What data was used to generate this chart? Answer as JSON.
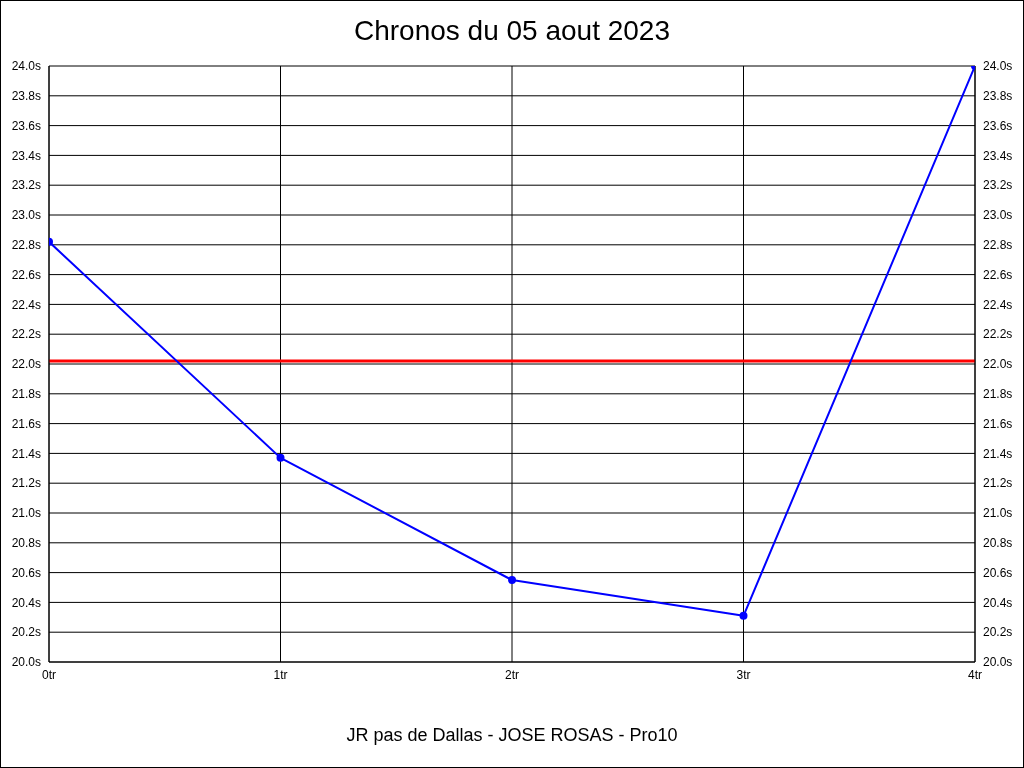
{
  "chart_data": {
    "type": "line",
    "title": "Chronos du 05 aout 2023",
    "xlabel": "JR pas de Dallas - JOSE ROSAS - Pro10",
    "categories": [
      "0tr",
      "1tr",
      "2tr",
      "3tr",
      "4tr"
    ],
    "series": [
      {
        "color": "#0000ff",
        "values": [
          22.82,
          21.37,
          20.55,
          20.31,
          24.0
        ]
      }
    ],
    "ylim": [
      20.0,
      24.0
    ],
    "yticks": [
      {
        "value": 20.0,
        "label": "20.0s"
      },
      {
        "value": 20.2,
        "label": "20.2s"
      },
      {
        "value": 20.4,
        "label": "20.4s"
      },
      {
        "value": 20.6,
        "label": "20.6s"
      },
      {
        "value": 20.8,
        "label": "20.8s"
      },
      {
        "value": 21.0,
        "label": "21.0s"
      },
      {
        "value": 21.2,
        "label": "21.2s"
      },
      {
        "value": 21.4,
        "label": "21.4s"
      },
      {
        "value": 21.6,
        "label": "21.6s"
      },
      {
        "value": 21.8,
        "label": "21.8s"
      },
      {
        "value": 22.0,
        "label": "22.0s"
      },
      {
        "value": 22.2,
        "label": "22.2s"
      },
      {
        "value": 22.4,
        "label": "22.4s"
      },
      {
        "value": 22.6,
        "label": "22.6s"
      },
      {
        "value": 22.8,
        "label": "22.8s"
      },
      {
        "value": 23.0,
        "label": "23.0s"
      },
      {
        "value": 23.2,
        "label": "23.2s"
      },
      {
        "value": 23.4,
        "label": "23.4s"
      },
      {
        "value": 23.6,
        "label": "23.6s"
      },
      {
        "value": 23.8,
        "label": "23.8s"
      },
      {
        "value": 24.0,
        "label": "24.0s"
      }
    ],
    "y2lim": [
      20.0,
      24.0
    ],
    "y2ticks": [
      {
        "value": 20.0,
        "label": "20.0s"
      },
      {
        "value": 20.2,
        "label": "20.2s"
      },
      {
        "value": 20.4,
        "label": "20.4s"
      },
      {
        "value": 20.6,
        "label": "20.6s"
      },
      {
        "value": 20.8,
        "label": "20.8s"
      },
      {
        "value": 21.0,
        "label": "21.0s"
      },
      {
        "value": 21.2,
        "label": "21.2s"
      },
      {
        "value": 21.4,
        "label": "21.4s"
      },
      {
        "value": 21.6,
        "label": "21.6s"
      },
      {
        "value": 21.8,
        "label": "21.8s"
      },
      {
        "value": 22.0,
        "label": "22.0s"
      },
      {
        "value": 22.2,
        "label": "22.2s"
      },
      {
        "value": 22.4,
        "label": "22.4s"
      },
      {
        "value": 22.6,
        "label": "22.6s"
      },
      {
        "value": 22.8,
        "label": "22.8s"
      },
      {
        "value": 23.0,
        "label": "23.0s"
      },
      {
        "value": 23.2,
        "label": "23.2s"
      },
      {
        "value": 23.4,
        "label": "23.4s"
      },
      {
        "value": 23.6,
        "label": "23.6s"
      },
      {
        "value": 23.8,
        "label": "23.8s"
      },
      {
        "value": 24.0,
        "label": "24.0s"
      }
    ],
    "ref_lines": [
      {
        "axis": "y",
        "value": 22.02,
        "color": "#ff0000"
      }
    ],
    "grid": true,
    "marker": "circle",
    "line_style": "solid"
  }
}
